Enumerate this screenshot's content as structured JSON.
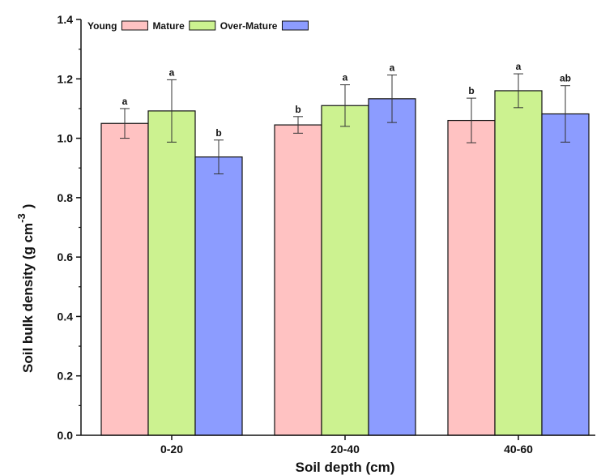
{
  "chart_data": {
    "type": "bar",
    "categories": [
      "0-20",
      "20-40",
      "40-60"
    ],
    "series": [
      {
        "name": "Young",
        "color": "#ffc2c2",
        "values": [
          1.05,
          1.045,
          1.06
        ],
        "error": [
          0.05,
          0.028,
          0.075
        ],
        "letters": [
          "a",
          "b",
          "b"
        ]
      },
      {
        "name": "Mature",
        "color": "#ccf290",
        "values": [
          1.092,
          1.11,
          1.16
        ],
        "error": [
          0.105,
          0.07,
          0.057
        ],
        "letters": [
          "a",
          "a",
          "a"
        ]
      },
      {
        "name": "Over-Mature",
        "color": "#8c9cff",
        "values": [
          0.937,
          1.133,
          1.082
        ],
        "error": [
          0.057,
          0.08,
          0.095
        ],
        "letters": [
          "b",
          "a",
          "ab"
        ]
      }
    ],
    "xlabel": "Soil depth (cm)",
    "ylabel_main": "Soil bulk density (g cm",
    "ylabel_sup": "-3",
    "ylabel_close": ")",
    "ylim": [
      0,
      1.4
    ],
    "yticks": [
      "0.0",
      "0.2",
      "0.4",
      "0.6",
      "0.8",
      "1.0",
      "1.2",
      "1.4"
    ],
    "legend_position": "top-left",
    "grid": false
  }
}
